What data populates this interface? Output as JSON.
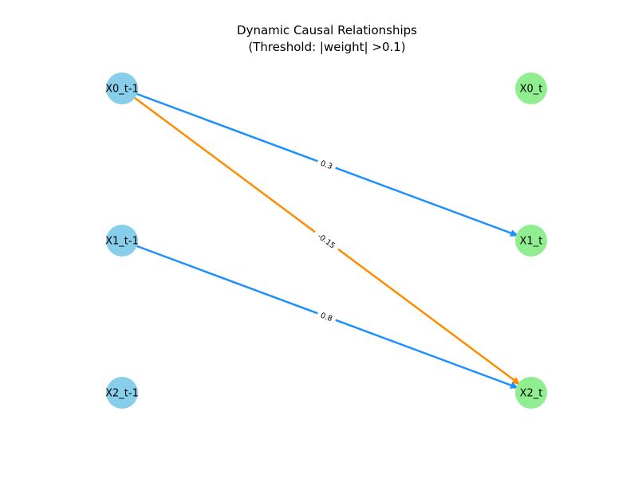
{
  "title": {
    "line1": "Dynamic Causal Relationships",
    "line2": "(Threshold: |weight| >0.1)"
  },
  "colors": {
    "lagged_node": "#87ceeb",
    "current_node": "#90ee90",
    "positive_edge": "#1e90ff",
    "negative_edge": "#ff8c00",
    "label_background": "#ffffff"
  },
  "nodes": [
    {
      "id": "X0_t-1",
      "label": "X0_t-1",
      "group": "lagged"
    },
    {
      "id": "X1_t-1",
      "label": "X1_t-1",
      "group": "lagged"
    },
    {
      "id": "X2_t-1",
      "label": "X2_t-1",
      "group": "lagged"
    },
    {
      "id": "X0_t",
      "label": "X0_t",
      "group": "current"
    },
    {
      "id": "X1_t",
      "label": "X1_t",
      "group": "current"
    },
    {
      "id": "X2_t",
      "label": "X2_t",
      "group": "current"
    }
  ],
  "edges": [
    {
      "source": "X0_t-1",
      "target": "X1_t",
      "weight": 0.3,
      "label": "0.3"
    },
    {
      "source": "X0_t-1",
      "target": "X2_t",
      "weight": -0.15,
      "label": "-0.15"
    },
    {
      "source": "X1_t-1",
      "target": "X2_t",
      "weight": 0.8,
      "label": "0.8"
    }
  ]
}
